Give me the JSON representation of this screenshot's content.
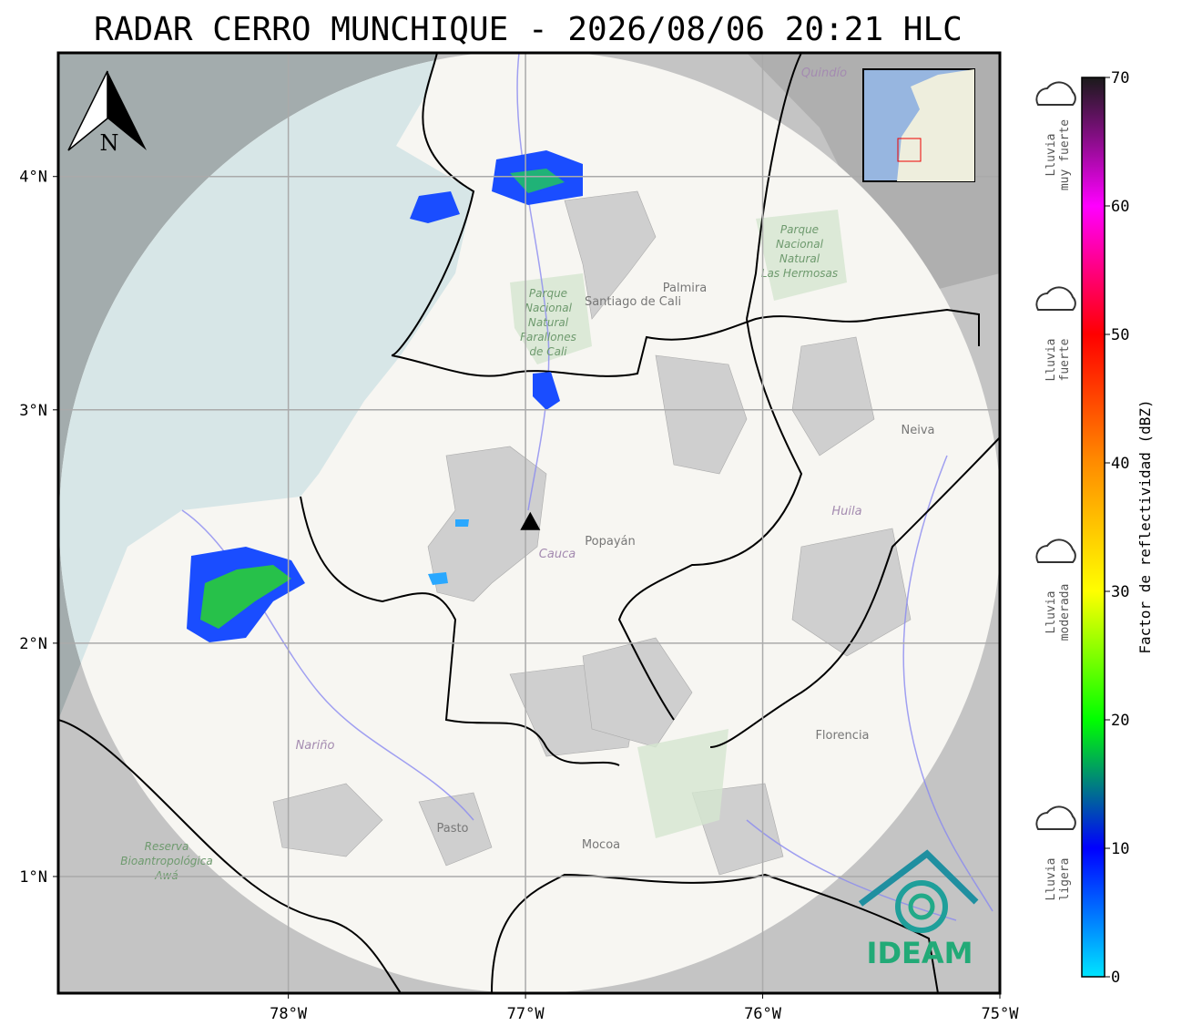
{
  "map": {
    "title": "RADAR CERRO MUNCHIQUE - 2026/08/06 20:21 HLC",
    "xlim": [
      -78.97,
      -75.0
    ],
    "ylim": [
      0.5,
      4.53
    ],
    "xticks": [
      {
        "value": -78,
        "label": "78°W"
      },
      {
        "value": -77,
        "label": "77°W"
      },
      {
        "value": -76,
        "label": "76°W"
      },
      {
        "value": -75,
        "label": "75°W"
      }
    ],
    "yticks": [
      {
        "value": 1,
        "label": "1°N"
      },
      {
        "value": 2,
        "label": "2°N"
      },
      {
        "value": 3,
        "label": "3°N"
      },
      {
        "value": 4,
        "label": "4°N"
      }
    ],
    "grid": true,
    "radar_site": {
      "lon": -76.98,
      "lat": 2.52,
      "range_deg": 2.02
    },
    "north_label": "N",
    "places": [
      "Santiago de Cali",
      "Palmira",
      "Popayán",
      "Cauca",
      "Huila",
      "Neiva",
      "Nariño",
      "Pasto",
      "Mocoa",
      "Florencia",
      "Quindío"
    ],
    "parks": [
      [
        "Parque",
        "Nacional",
        "Natural",
        "Farallones",
        "de Cali"
      ],
      [
        "Parque",
        "Nacional",
        "Natural",
        "Las Hermosas"
      ],
      [
        "Reserva",
        "Bioantropológica",
        "Awá"
      ]
    ],
    "logo": "IDEAM"
  },
  "colorbar": {
    "label": "Factor de reflectividad (dBZ)",
    "lim": [
      0,
      70
    ],
    "ticks": [
      0,
      10,
      20,
      30,
      40,
      50,
      60,
      70
    ],
    "colors": [
      "#00e5ff",
      "#0000ff",
      "#00ff00",
      "#ffff00",
      "#ff8c00",
      "#ff0000",
      "#ff00ff",
      "#1a1a1a"
    ]
  },
  "legend": [
    [
      "Lluvia",
      "muy fuerte"
    ],
    [
      "Lluvia",
      "fuerte"
    ],
    [
      "Lluvia",
      "moderada"
    ],
    [
      "Lluvia",
      "ligera"
    ]
  ]
}
